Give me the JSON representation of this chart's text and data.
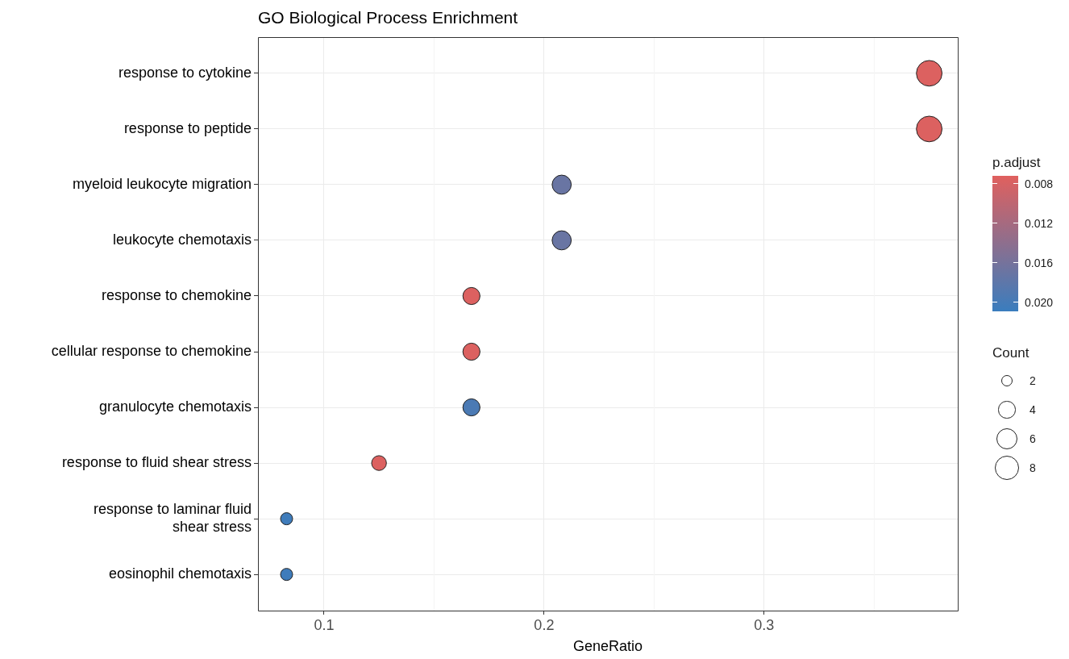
{
  "chart_data": {
    "type": "bubble",
    "title": "GO Biological Process Enrichment",
    "xlabel": "GeneRatio",
    "clabel": "p.adjust",
    "legend_title": "Count",
    "orientation": "horizontal",
    "categories": [
      "response to cytokine",
      "response to peptide",
      "myeloid leukocyte migration",
      "leukocyte chemotaxis",
      "response to chemokine",
      "cellular response to chemokine",
      "granulocyte chemotaxis",
      "response to fluid shear stress",
      "response to laminar fluid shear stress",
      "eosinophil chemotaxis"
    ],
    "values": [
      0.375,
      0.375,
      0.208,
      0.208,
      0.167,
      0.167,
      0.167,
      0.125,
      0.083,
      0.083
    ],
    "sizes": [
      9,
      9,
      5,
      5,
      4,
      4,
      4,
      3,
      2,
      2
    ],
    "size_legend": [
      2,
      4,
      6,
      8
    ],
    "cvalues": [
      0.0075,
      0.0075,
      0.017,
      0.017,
      0.0075,
      0.0075,
      0.0195,
      0.0075,
      0.0205,
      0.0205
    ],
    "clim": [
      0.0072,
      0.0209
    ],
    "cticks": [
      0.008,
      0.012,
      0.016,
      {
        "value": 0.02,
        "label": "0.020"
      }
    ],
    "xlim": [
      0.07,
      0.388
    ],
    "xticks": [
      0.1,
      0.2,
      0.3
    ],
    "grid": true
  }
}
